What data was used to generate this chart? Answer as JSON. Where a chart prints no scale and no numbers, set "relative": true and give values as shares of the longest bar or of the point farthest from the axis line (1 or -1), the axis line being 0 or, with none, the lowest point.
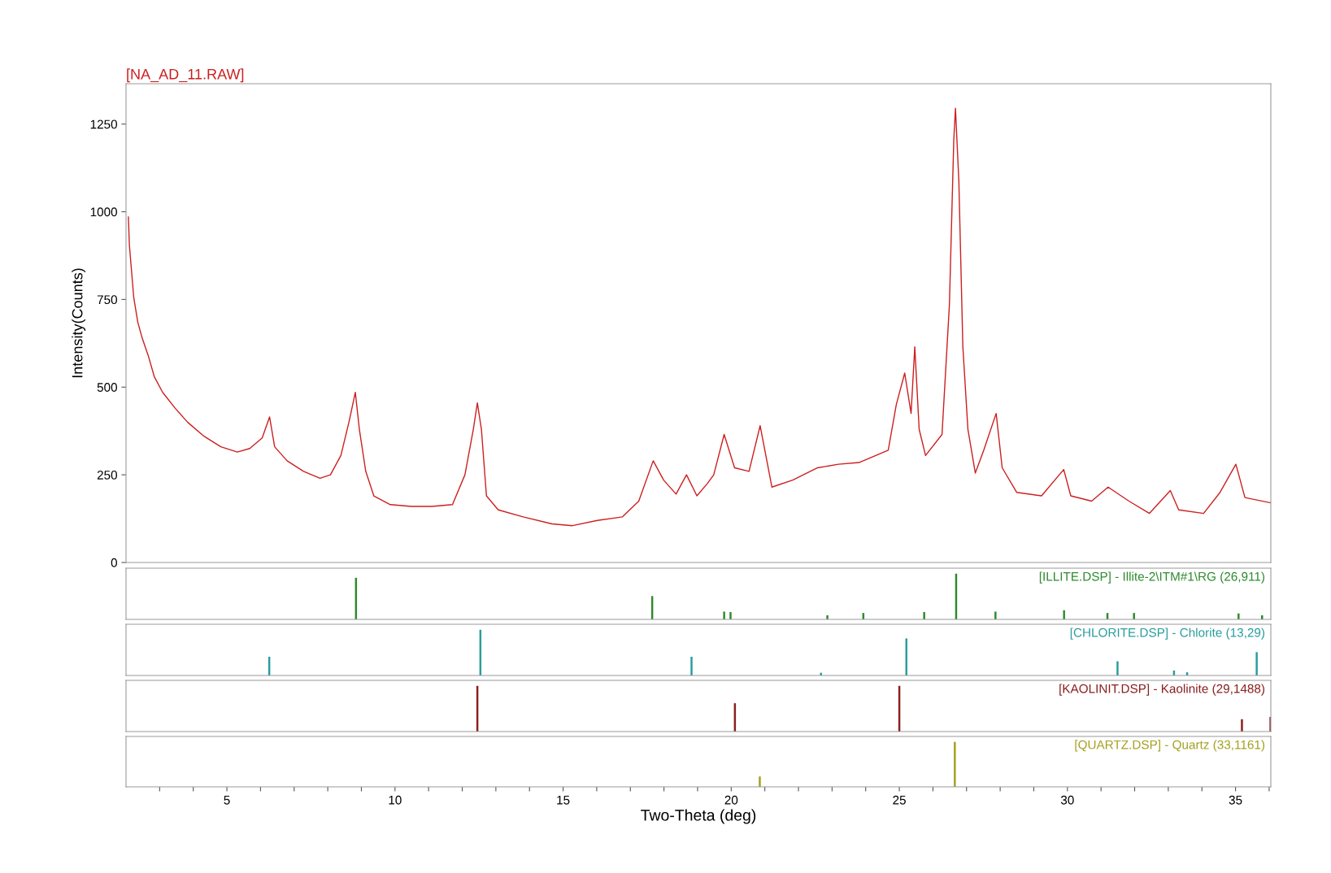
{
  "chart_data": [
    {
      "type": "line",
      "title": "[NA_AD_11.RAW]",
      "ylabel": "Intensity(Counts)",
      "xlim": [
        2,
        36.05
      ],
      "ylim": [
        0,
        1365
      ],
      "yticks": [
        0,
        250,
        500,
        750,
        1000,
        1250
      ],
      "tick_labels": "y",
      "grid": false,
      "legend": false,
      "marker": "none",
      "line_style": "solid",
      "series": [
        {
          "color": "#cc1f1f",
          "x": [
            2.07,
            2.1,
            2.23,
            2.35,
            2.48,
            2.66,
            2.84,
            3.09,
            3.46,
            3.83,
            4.32,
            4.82,
            5.31,
            5.68,
            6.05,
            6.27,
            6.42,
            6.79,
            7.28,
            7.77,
            8.08,
            8.39,
            8.63,
            8.82,
            8.94,
            9.13,
            9.37,
            9.86,
            10.48,
            11.1,
            11.71,
            12.08,
            12.33,
            12.45,
            12.57,
            12.72,
            13.07,
            13.81,
            14.67,
            15.28,
            16.02,
            16.76,
            17.25,
            17.68,
            17.99,
            18.36,
            18.67,
            18.98,
            19.29,
            19.48,
            19.79,
            20.1,
            20.53,
            20.86,
            21.21,
            21.83,
            22.57,
            23.19,
            23.8,
            24.67,
            24.91,
            25.16,
            25.35,
            25.46,
            25.59,
            25.78,
            26.27,
            26.49,
            26.62,
            26.67,
            26.77,
            26.89,
            27.04,
            27.26,
            27.51,
            27.88,
            28.06,
            28.49,
            29.23,
            29.89,
            30.1,
            30.72,
            31.21,
            31.83,
            32.44,
            33.06,
            33.31,
            34.05,
            34.54,
            35.01,
            35.28,
            36.05
          ],
          "values": [
            985,
            905,
            755,
            685,
            640,
            590,
            530,
            485,
            440,
            400,
            360,
            330,
            315,
            325,
            355,
            415,
            330,
            290,
            260,
            240,
            250,
            305,
            400,
            485,
            380,
            260,
            190,
            165,
            160,
            160,
            165,
            250,
            380,
            455,
            380,
            190,
            150,
            130,
            110,
            105,
            120,
            130,
            175,
            290,
            235,
            195,
            250,
            190,
            225,
            250,
            365,
            270,
            260,
            390,
            215,
            235,
            270,
            280,
            285,
            320,
            450,
            540,
            425,
            615,
            380,
            305,
            365,
            735,
            1205,
            1295,
            1090,
            615,
            380,
            255,
            320,
            425,
            270,
            200,
            190,
            265,
            190,
            175,
            215,
            175,
            140,
            205,
            150,
            140,
            200,
            280,
            185,
            170
          ]
        }
      ]
    },
    {
      "type": "bar",
      "relative": true,
      "xlim": [
        2,
        36.05
      ],
      "tick_labels": false,
      "series": [
        {
          "name": "[ILLITE.DSP] - Illite-2\\ITM#1\\RG (26,911)",
          "color": "#2e8b2e",
          "x": [
            8.84,
            17.65,
            19.79,
            19.98,
            22.86,
            23.93,
            25.74,
            26.69,
            27.86,
            29.9,
            31.19,
            31.98,
            35.09,
            35.79
          ],
          "values": [
            0.91,
            0.51,
            0.17,
            0.16,
            0.09,
            0.14,
            0.16,
            1,
            0.17,
            0.2,
            0.14,
            0.14,
            0.13,
            0.09
          ]
        }
      ]
    },
    {
      "type": "bar",
      "relative": true,
      "xlim": [
        2,
        36.05
      ],
      "tick_labels": false,
      "series": [
        {
          "name": "[CHLORITE.DSP] - Chlorite (13,29)",
          "color": "#2a9d9d",
          "x": [
            6.26,
            12.54,
            18.82,
            22.67,
            25.21,
            31.49,
            33.17,
            33.56,
            35.63
          ],
          "values": [
            0.41,
            1,
            0.41,
            0.06,
            0.81,
            0.31,
            0.11,
            0.07,
            0.51
          ]
        }
      ]
    },
    {
      "type": "bar",
      "relative": true,
      "xlim": [
        2,
        36.05
      ],
      "tick_labels": false,
      "series": [
        {
          "name": "[KAOLINIT.DSP] - Kaolinite (29,1488)",
          "color": "#8b1f1f",
          "x": [
            12.45,
            20.11,
            25.0,
            35.19,
            36.04
          ],
          "values": [
            1,
            0.62,
            1,
            0.27,
            0.32
          ]
        }
      ]
    },
    {
      "type": "bar",
      "relative": true,
      "xlim": [
        2,
        36.05
      ],
      "tick_labels": "x",
      "xlabel": "Two-Theta (deg)",
      "xticks": [
        {
          "value": 3,
          "label": null
        },
        {
          "value": 4,
          "label": null
        },
        5,
        {
          "value": 6,
          "label": null
        },
        {
          "value": 7,
          "label": null
        },
        {
          "value": 8,
          "label": null
        },
        {
          "value": 9,
          "label": null
        },
        10,
        {
          "value": 11,
          "label": null
        },
        {
          "value": 12,
          "label": null
        },
        {
          "value": 13,
          "label": null
        },
        {
          "value": 14,
          "label": null
        },
        15,
        {
          "value": 16,
          "label": null
        },
        {
          "value": 17,
          "label": null
        },
        {
          "value": 18,
          "label": null
        },
        {
          "value": 19,
          "label": null
        },
        20,
        {
          "value": 21,
          "label": null
        },
        {
          "value": 22,
          "label": null
        },
        {
          "value": 23,
          "label": null
        },
        {
          "value": 24,
          "label": null
        },
        25,
        {
          "value": 26,
          "label": null
        },
        {
          "value": 27,
          "label": null
        },
        {
          "value": 28,
          "label": null
        },
        {
          "value": 29,
          "label": null
        },
        30,
        {
          "value": 31,
          "label": null
        },
        {
          "value": 32,
          "label": null
        },
        {
          "value": 33,
          "label": null
        },
        {
          "value": 34,
          "label": null
        },
        35,
        {
          "value": 36,
          "label": null
        }
      ],
      "series": [
        {
          "name": "[QUARTZ.DSP] - Quartz (33,1161)",
          "color": "#a5a020",
          "x": [
            20.85,
            26.65
          ],
          "values": [
            0.23,
            1
          ]
        }
      ]
    }
  ]
}
